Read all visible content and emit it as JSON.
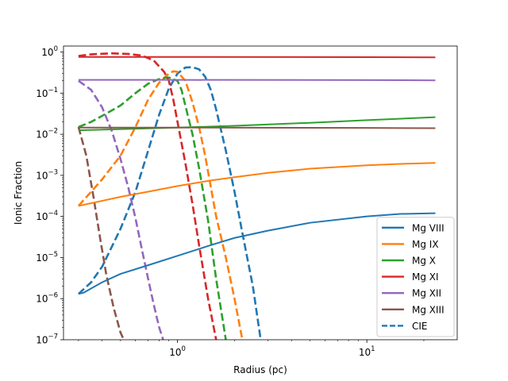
{
  "chart_data": {
    "type": "line",
    "title": "",
    "xlabel": "Radius (pc)",
    "ylabel": "Ionic Fraction",
    "xscale": "log",
    "yscale": "log",
    "xlim": [
      0.25,
      30
    ],
    "ylim": [
      1e-07,
      1.4
    ],
    "x_ticks": [
      {
        "label": "10",
        "sup": "0",
        "value": 1
      },
      {
        "label": "10",
        "sup": "1",
        "value": 10
      }
    ],
    "y_ticks": [
      {
        "label": "10",
        "sup": "−7",
        "value": 1e-07
      },
      {
        "label": "10",
        "sup": "−6",
        "value": 1e-06
      },
      {
        "label": "10",
        "sup": "−5",
        "value": 1e-05
      },
      {
        "label": "10",
        "sup": "−4",
        "value": 0.0001
      },
      {
        "label": "10",
        "sup": "−3",
        "value": 0.001
      },
      {
        "label": "10",
        "sup": "−2",
        "value": 0.01
      },
      {
        "label": "10",
        "sup": "−1",
        "value": 0.1
      },
      {
        "label": "10",
        "sup": "0",
        "value": 1
      }
    ],
    "legend_position": "bottom-right",
    "legend": [
      {
        "label": "Mg VIII",
        "color": "#1f77b4",
        "style": "solid"
      },
      {
        "label": "Mg IX",
        "color": "#ff7f0e",
        "style": "solid"
      },
      {
        "label": "Mg X",
        "color": "#2ca02c",
        "style": "solid"
      },
      {
        "label": "Mg XI",
        "color": "#d62728",
        "style": "solid"
      },
      {
        "label": "Mg XII",
        "color": "#9467bd",
        "style": "solid"
      },
      {
        "label": "Mg XIII",
        "color": "#8c564b",
        "style": "solid"
      },
      {
        "label": "CIE",
        "color": "#1f77b4",
        "style": "dashed"
      }
    ],
    "series": [
      {
        "name": "Mg VIII",
        "style": "solid",
        "color": "#1f77b4",
        "points": [
          [
            0.3,
            1.3e-06
          ],
          [
            0.32,
            1.4e-06
          ],
          [
            0.4,
            2.5e-06
          ],
          [
            0.5,
            4e-06
          ],
          [
            0.7,
            6.5e-06
          ],
          [
            1,
            1.1e-05
          ],
          [
            1.5,
            2e-05
          ],
          [
            2,
            3e-05
          ],
          [
            3,
            4.5e-05
          ],
          [
            5,
            7e-05
          ],
          [
            10,
            0.0001
          ],
          [
            15,
            0.000115
          ],
          [
            23,
            0.00012
          ]
        ]
      },
      {
        "name": "Mg IX",
        "style": "solid",
        "color": "#ff7f0e",
        "points": [
          [
            0.3,
            0.00018
          ],
          [
            0.35,
            0.00021
          ],
          [
            0.5,
            0.0003
          ],
          [
            0.7,
            0.0004
          ],
          [
            1,
            0.00055
          ],
          [
            1.5,
            0.00075
          ],
          [
            2,
            0.0009
          ],
          [
            3,
            0.00115
          ],
          [
            5,
            0.00145
          ],
          [
            10,
            0.00175
          ],
          [
            15,
            0.0019
          ],
          [
            23,
            0.002
          ]
        ]
      },
      {
        "name": "Mg X",
        "style": "solid",
        "color": "#2ca02c",
        "points": [
          [
            0.3,
            0.0125
          ],
          [
            1,
            0.0145
          ],
          [
            2,
            0.016
          ],
          [
            5,
            0.019
          ],
          [
            10,
            0.022
          ],
          [
            23,
            0.026
          ]
        ]
      },
      {
        "name": "Mg XI",
        "style": "solid",
        "color": "#d62728",
        "points": [
          [
            0.3,
            0.76
          ],
          [
            1,
            0.76
          ],
          [
            10,
            0.75
          ],
          [
            23,
            0.745
          ]
        ]
      },
      {
        "name": "Mg XII",
        "style": "solid",
        "color": "#9467bd",
        "points": [
          [
            0.3,
            0.21
          ],
          [
            1,
            0.21
          ],
          [
            10,
            0.208
          ],
          [
            23,
            0.205
          ]
        ]
      },
      {
        "name": "Mg XIII",
        "style": "solid",
        "color": "#8c564b",
        "points": [
          [
            0.3,
            0.0145
          ],
          [
            1,
            0.0145
          ],
          [
            10,
            0.0143
          ],
          [
            23,
            0.014
          ]
        ]
      },
      {
        "name": "Mg VIII (CIE)",
        "style": "dashed",
        "color": "#1f77b4",
        "points": [
          [
            0.3,
            1.3e-06
          ],
          [
            0.35,
            2.5e-06
          ],
          [
            0.4,
            6e-06
          ],
          [
            0.5,
            5e-05
          ],
          [
            0.6,
            0.0004
          ],
          [
            0.7,
            0.004
          ],
          [
            0.8,
            0.03
          ],
          [
            0.9,
            0.13
          ],
          [
            1,
            0.3
          ],
          [
            1.1,
            0.42
          ],
          [
            1.2,
            0.43
          ],
          [
            1.3,
            0.38
          ],
          [
            1.4,
            0.25
          ],
          [
            1.5,
            0.12
          ],
          [
            1.6,
            0.04
          ],
          [
            1.8,
            0.004
          ],
          [
            2,
            0.0004
          ],
          [
            2.2,
            4e-05
          ],
          [
            2.5,
            2e-06
          ],
          [
            2.75,
            1e-07
          ]
        ]
      },
      {
        "name": "Mg IX (CIE)",
        "style": "dashed",
        "color": "#ff7f0e",
        "points": [
          [
            0.3,
            0.00018
          ],
          [
            0.35,
            0.0004
          ],
          [
            0.4,
            0.0008
          ],
          [
            0.5,
            0.003
          ],
          [
            0.6,
            0.015
          ],
          [
            0.7,
            0.07
          ],
          [
            0.8,
            0.18
          ],
          [
            0.9,
            0.3
          ],
          [
            0.95,
            0.34
          ],
          [
            1,
            0.33
          ],
          [
            1.1,
            0.2
          ],
          [
            1.2,
            0.06
          ],
          [
            1.3,
            0.015
          ],
          [
            1.4,
            0.003
          ],
          [
            1.6,
            0.0001
          ],
          [
            1.8,
            1e-05
          ],
          [
            2,
            1e-06
          ],
          [
            2.2,
            1e-07
          ]
        ]
      },
      {
        "name": "Mg X (CIE)",
        "style": "dashed",
        "color": "#2ca02c",
        "points": [
          [
            0.3,
            0.015
          ],
          [
            0.35,
            0.02
          ],
          [
            0.4,
            0.028
          ],
          [
            0.5,
            0.05
          ],
          [
            0.6,
            0.1
          ],
          [
            0.7,
            0.17
          ],
          [
            0.8,
            0.22
          ],
          [
            0.87,
            0.24
          ],
          [
            0.9,
            0.24
          ],
          [
            1,
            0.2
          ],
          [
            1.05,
            0.12
          ],
          [
            1.1,
            0.05
          ],
          [
            1.2,
            0.01
          ],
          [
            1.3,
            0.0015
          ],
          [
            1.45,
            8e-05
          ],
          [
            1.6,
            3e-06
          ],
          [
            1.8,
            1e-07
          ]
        ]
      },
      {
        "name": "Mg XI (CIE)",
        "style": "dashed",
        "color": "#d62728",
        "points": [
          [
            0.3,
            0.8
          ],
          [
            0.35,
            0.88
          ],
          [
            0.45,
            0.93
          ],
          [
            0.55,
            0.9
          ],
          [
            0.65,
            0.82
          ],
          [
            0.75,
            0.62
          ],
          [
            0.85,
            0.33
          ],
          [
            0.9,
            0.2
          ],
          [
            0.95,
            0.07
          ],
          [
            1,
            0.02
          ],
          [
            1.1,
            0.002
          ],
          [
            1.2,
            0.0002
          ],
          [
            1.3,
            2e-05
          ],
          [
            1.45,
            1e-06
          ],
          [
            1.6,
            1e-07
          ]
        ]
      },
      {
        "name": "Mg XII (CIE)",
        "style": "dashed",
        "color": "#9467bd",
        "points": [
          [
            0.3,
            0.2
          ],
          [
            0.35,
            0.12
          ],
          [
            0.4,
            0.045
          ],
          [
            0.45,
            0.012
          ],
          [
            0.5,
            0.0025
          ],
          [
            0.55,
            0.0005
          ],
          [
            0.6,
            9e-05
          ],
          [
            0.65,
            1.5e-05
          ],
          [
            0.7,
            3e-06
          ],
          [
            0.75,
            7e-07
          ],
          [
            0.8,
            2e-07
          ],
          [
            0.84,
            1e-07
          ]
        ]
      },
      {
        "name": "Mg XIII (CIE)",
        "style": "dashed",
        "color": "#8c564b",
        "points": [
          [
            0.3,
            0.015
          ],
          [
            0.33,
            0.003
          ],
          [
            0.36,
            0.0003
          ],
          [
            0.39,
            3e-05
          ],
          [
            0.42,
            4e-06
          ],
          [
            0.46,
            6e-07
          ],
          [
            0.5,
            1.5e-07
          ],
          [
            0.52,
            1e-07
          ]
        ]
      }
    ]
  }
}
